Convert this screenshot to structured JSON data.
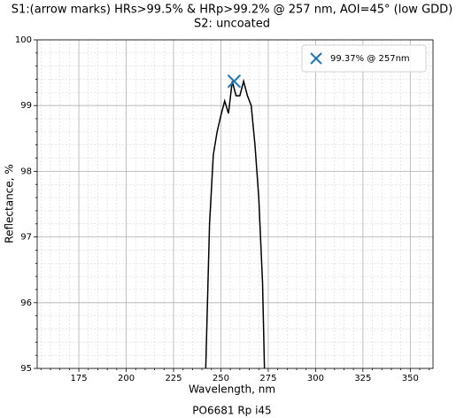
{
  "chart_data": {
    "type": "line",
    "title": "S1:(arrow marks) HRs>99.5% & HRp>99.2% @ 257 nm, AOI=45° (low GDD)",
    "subtitle": "S2: uncoated",
    "x_label": "Wavelength, nm",
    "y_label": "Reflectance, %",
    "footer": "PO6681 Rp i45",
    "xlim": [
      153,
      362
    ],
    "ylim": [
      95,
      100
    ],
    "xticks": [
      175,
      200,
      225,
      250,
      275,
      300,
      325,
      350
    ],
    "yticks": [
      95,
      96,
      97,
      98,
      99,
      100
    ],
    "xminorticks": [
      155,
      160,
      165,
      170,
      180,
      185,
      190,
      195,
      205,
      210,
      215,
      220,
      230,
      235,
      240,
      245,
      255,
      260,
      265,
      270,
      280,
      285,
      290,
      295,
      305,
      310,
      315,
      320,
      330,
      335,
      340,
      345,
      355,
      360
    ],
    "yminorticks": [
      95.2,
      95.4,
      95.6,
      95.8,
      96.2,
      96.4,
      96.6,
      96.8,
      97.2,
      97.4,
      97.6,
      97.8,
      98.2,
      98.4,
      98.6,
      98.8,
      99.2,
      99.4,
      99.6,
      99.8
    ],
    "grid": true,
    "minor_grid": true,
    "legend_position": "upper right",
    "series": [
      {
        "color": "#000000",
        "x": [
          242,
          244,
          246,
          248,
          250,
          252,
          254,
          256,
          258,
          260,
          262,
          264,
          266,
          268,
          270,
          272,
          273
        ],
        "values": [
          95,
          97.2,
          98.25,
          98.6,
          98.85,
          99.07,
          98.88,
          99.37,
          99.15,
          99.15,
          99.37,
          99.15,
          99.0,
          98.4,
          97.6,
          96.3,
          95
        ]
      },
      {
        "name": "99.37% @ 257nm",
        "color": "#1f77b4",
        "marker": "x",
        "x": [
          257
        ],
        "values": [
          99.37
        ]
      }
    ]
  }
}
